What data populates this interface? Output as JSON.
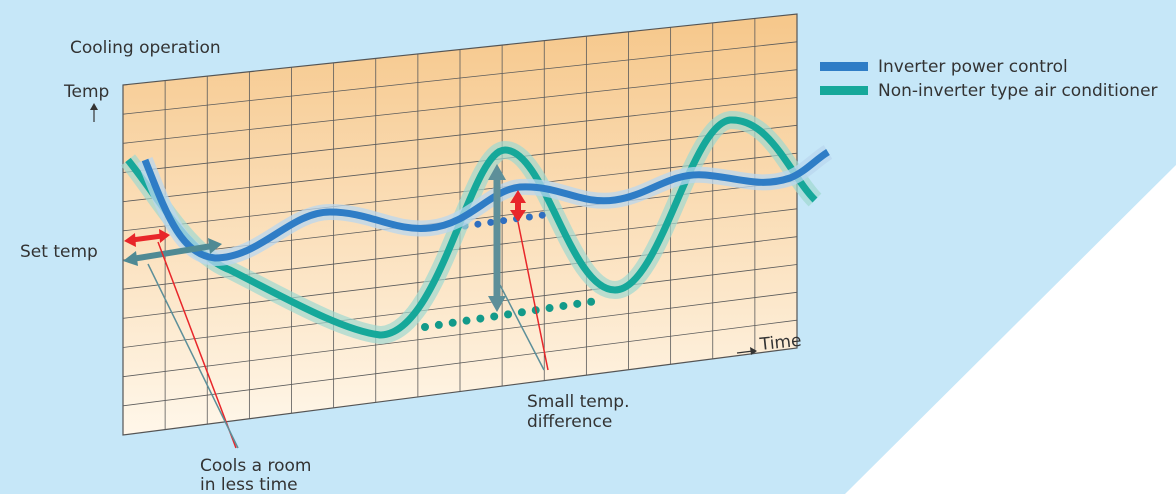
{
  "title": "Cooling operation",
  "axes": {
    "y_label": "Temp",
    "x_label": "Time"
  },
  "set_temp_label": "Set temp",
  "legend": [
    {
      "label": "Inverter power control",
      "color": "#2f7dc6"
    },
    {
      "label": "Non-inverter type air conditioner",
      "color": "#16a89a"
    }
  ],
  "callouts": {
    "small_difference": [
      "Small temp.",
      "difference"
    ],
    "cools_faster": [
      "Cools a room",
      "in less time"
    ]
  }
}
